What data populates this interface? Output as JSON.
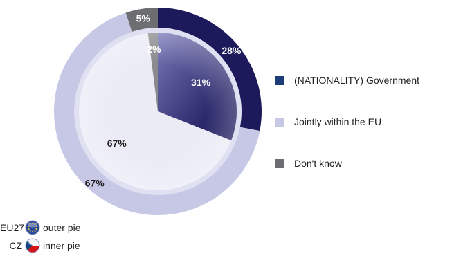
{
  "chart_data": {
    "type": "pie",
    "categories": [
      "(NATIONALITY) Government",
      "Jointly within the EU",
      "Don't know"
    ],
    "colors": [
      "#1d1a5c",
      "#c6c8e6",
      "#6d6e71"
    ],
    "series": [
      {
        "name": "EU27",
        "values": [
          28,
          67,
          5
        ],
        "labels": [
          "28%",
          "67%",
          "5%"
        ]
      },
      {
        "name": "CZ",
        "values": [
          31,
          67,
          2
        ],
        "labels": [
          "31%",
          "67%",
          "2%"
        ]
      }
    ]
  },
  "legend": {
    "items": [
      {
        "label": "(NATIONALITY) Government",
        "color": "#1d1a5c"
      },
      {
        "label": "Jointly within the EU",
        "color": "#c6c8e6"
      },
      {
        "label": "Don't know",
        "color": "#6d6e71"
      }
    ]
  },
  "key": {
    "outer": {
      "code": "EU27",
      "label": "outer pie",
      "icon": "eu-flag-icon"
    },
    "inner": {
      "code": "CZ",
      "label": "inner pie",
      "icon": "cz-flag-icon"
    }
  }
}
